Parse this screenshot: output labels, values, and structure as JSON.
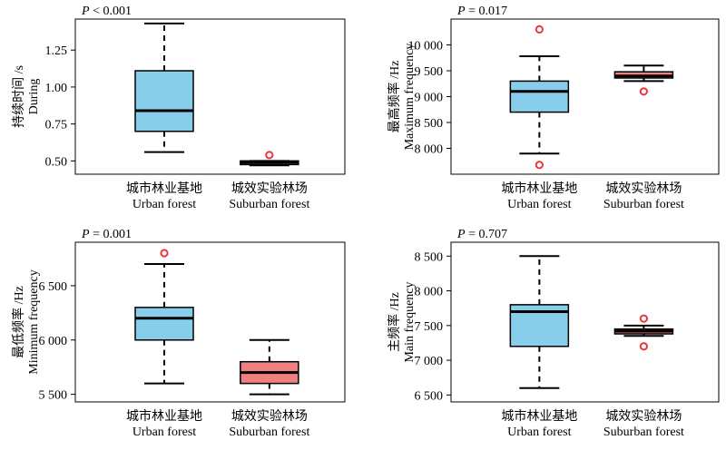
{
  "colors": {
    "urban_fill": "#87CEEB",
    "suburban_fill": "#F08080",
    "outlier_stroke": "#E8383D",
    "line": "#000000"
  },
  "chart_data": [
    {
      "type": "box",
      "p_value_text": "P < 0.001",
      "ylabel_cn": "持续时间 /s",
      "ylabel_en": "During",
      "ylim": [
        0.41,
        1.46
      ],
      "yticks": [
        0.5,
        0.75,
        1.0,
        1.25
      ],
      "ytick_labels": [
        "0.50",
        "0.75",
        "1.00",
        "1.25"
      ],
      "categories": [
        {
          "cn": "城市林业基地",
          "en": "Urban forest"
        },
        {
          "cn": "城效实验林场",
          "en": "Suburban forest"
        }
      ],
      "boxes": [
        {
          "whisker_low": 0.56,
          "q1": 0.7,
          "median": 0.84,
          "q3": 1.11,
          "whisker_high": 1.43,
          "outliers": []
        },
        {
          "whisker_low": 0.47,
          "q1": 0.475,
          "median": 0.49,
          "q3": 0.5,
          "whisker_high": 0.5,
          "outliers": [
            0.54
          ]
        }
      ]
    },
    {
      "type": "box",
      "p_value_text": "P = 0.017",
      "ylabel_cn": "最高频率 /Hz",
      "ylabel_en": "Maximum frequency",
      "ylim": [
        7500,
        10500
      ],
      "yticks": [
        8000,
        8500,
        9000,
        9500,
        10000
      ],
      "ytick_labels": [
        "8 000",
        "8 500",
        "9 000",
        "9 500",
        "10 000"
      ],
      "categories": [
        {
          "cn": "城市林业基地",
          "en": "Urban forest"
        },
        {
          "cn": "城效实验林场",
          "en": "Suburban forest"
        }
      ],
      "boxes": [
        {
          "whisker_low": 7900,
          "q1": 8700,
          "median": 9100,
          "q3": 9300,
          "whisker_high": 9780,
          "outliers": [
            10300,
            7680
          ]
        },
        {
          "whisker_low": 9300,
          "q1": 9360,
          "median": 9400,
          "q3": 9480,
          "whisker_high": 9600,
          "outliers": [
            9100
          ]
        }
      ]
    },
    {
      "type": "box",
      "p_value_text": "P = 0.001",
      "ylabel_cn": "最低频率 /Hz",
      "ylabel_en": "Minimum frequency",
      "ylim": [
        5430,
        6900
      ],
      "yticks": [
        5500,
        6000,
        6500
      ],
      "ytick_labels": [
        "5 500",
        "6 000",
        "6 500"
      ],
      "categories": [
        {
          "cn": "城市林业基地",
          "en": "Urban forest"
        },
        {
          "cn": "城效实验林场",
          "en": "Suburban forest"
        }
      ],
      "boxes": [
        {
          "whisker_low": 5600,
          "q1": 6000,
          "median": 6200,
          "q3": 6300,
          "whisker_high": 6700,
          "outliers": [
            6800
          ]
        },
        {
          "whisker_low": 5500,
          "q1": 5600,
          "median": 5700,
          "q3": 5800,
          "whisker_high": 6000,
          "outliers": []
        }
      ]
    },
    {
      "type": "box",
      "p_value_text": "P = 0.707",
      "ylabel_cn": "主频率 /Hz",
      "ylabel_en": "Main frequency",
      "ylim": [
        6400,
        8700
      ],
      "yticks": [
        6500,
        7000,
        7500,
        8000,
        8500
      ],
      "ytick_labels": [
        "6 500",
        "7 000",
        "7 500",
        "8 000",
        "8 500"
      ],
      "categories": [
        {
          "cn": "城市林业基地",
          "en": "Urban forest"
        },
        {
          "cn": "城效实验林场",
          "en": "Suburban forest"
        }
      ],
      "boxes": [
        {
          "whisker_low": 6600,
          "q1": 7200,
          "median": 7700,
          "q3": 7800,
          "whisker_high": 8500,
          "outliers": []
        },
        {
          "whisker_low": 7350,
          "q1": 7380,
          "median": 7420,
          "q3": 7450,
          "whisker_high": 7500,
          "outliers": [
            7600,
            7200
          ]
        }
      ]
    }
  ]
}
